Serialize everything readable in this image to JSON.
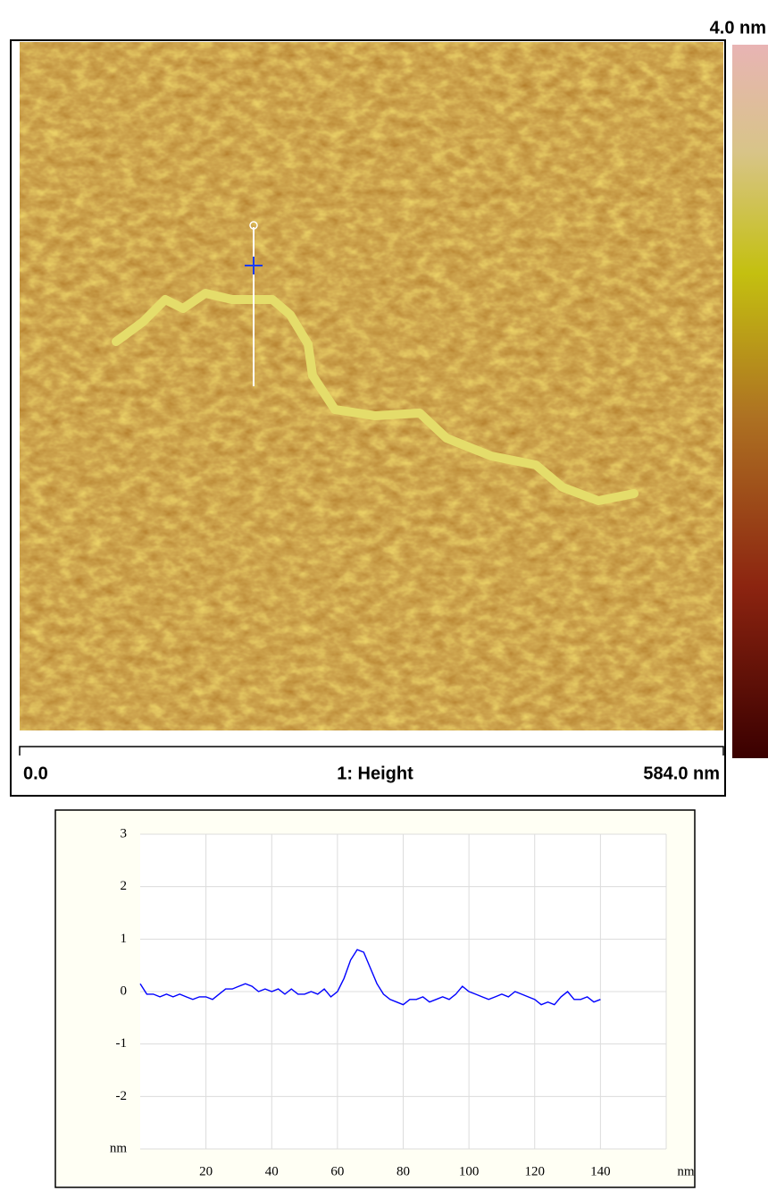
{
  "afm_image": {
    "color_max": "4.0 nm",
    "x_start": "0.0",
    "channel": "1: Height",
    "x_end": "584.0 nm"
  },
  "chart_data": {
    "type": "line",
    "x": [
      0,
      2,
      4,
      6,
      8,
      10,
      12,
      14,
      16,
      18,
      20,
      22,
      24,
      26,
      28,
      30,
      32,
      34,
      36,
      38,
      40,
      42,
      44,
      46,
      48,
      50,
      52,
      54,
      56,
      58,
      60,
      62,
      64,
      66,
      68,
      70,
      72,
      74,
      76,
      78,
      80,
      82,
      84,
      86,
      88,
      90,
      92,
      94,
      96,
      98,
      100,
      102,
      104,
      106,
      108,
      110,
      112,
      114,
      116,
      118,
      120,
      122,
      124,
      126,
      128,
      130,
      132,
      134,
      136,
      138,
      140
    ],
    "series": [
      {
        "color": "#0000ff",
        "values": [
          0.15,
          -0.05,
          -0.05,
          -0.1,
          -0.05,
          -0.1,
          -0.05,
          -0.1,
          -0.15,
          -0.1,
          -0.1,
          -0.15,
          -0.05,
          0.05,
          0.05,
          0.1,
          0.15,
          0.1,
          0.0,
          0.05,
          0.0,
          0.05,
          -0.05,
          0.05,
          -0.05,
          -0.05,
          0.0,
          -0.05,
          0.05,
          -0.1,
          0.0,
          0.25,
          0.6,
          0.8,
          0.75,
          0.45,
          0.15,
          -0.05,
          -0.15,
          -0.2,
          -0.25,
          -0.15,
          -0.15,
          -0.1,
          -0.2,
          -0.15,
          -0.1,
          -0.15,
          -0.05,
          0.1,
          0.0,
          -0.05,
          -0.1,
          -0.15,
          -0.1,
          -0.05,
          -0.1,
          0.0,
          -0.05,
          -0.1,
          -0.15,
          -0.25,
          -0.2,
          -0.25,
          -0.1,
          0.0,
          -0.15,
          -0.15,
          -0.1,
          -0.2,
          -0.15
        ]
      }
    ],
    "xlim": [
      0,
      160
    ],
    "xticks": [
      20,
      40,
      60,
      80,
      100,
      120,
      140,
      {
        "value": 160,
        "label": "nm"
      }
    ],
    "ylim": [
      -3,
      3
    ],
    "yticks": [
      {
        "value": -3,
        "label": "nm"
      },
      -2,
      -1,
      0,
      1,
      2,
      3
    ],
    "grid": true
  }
}
